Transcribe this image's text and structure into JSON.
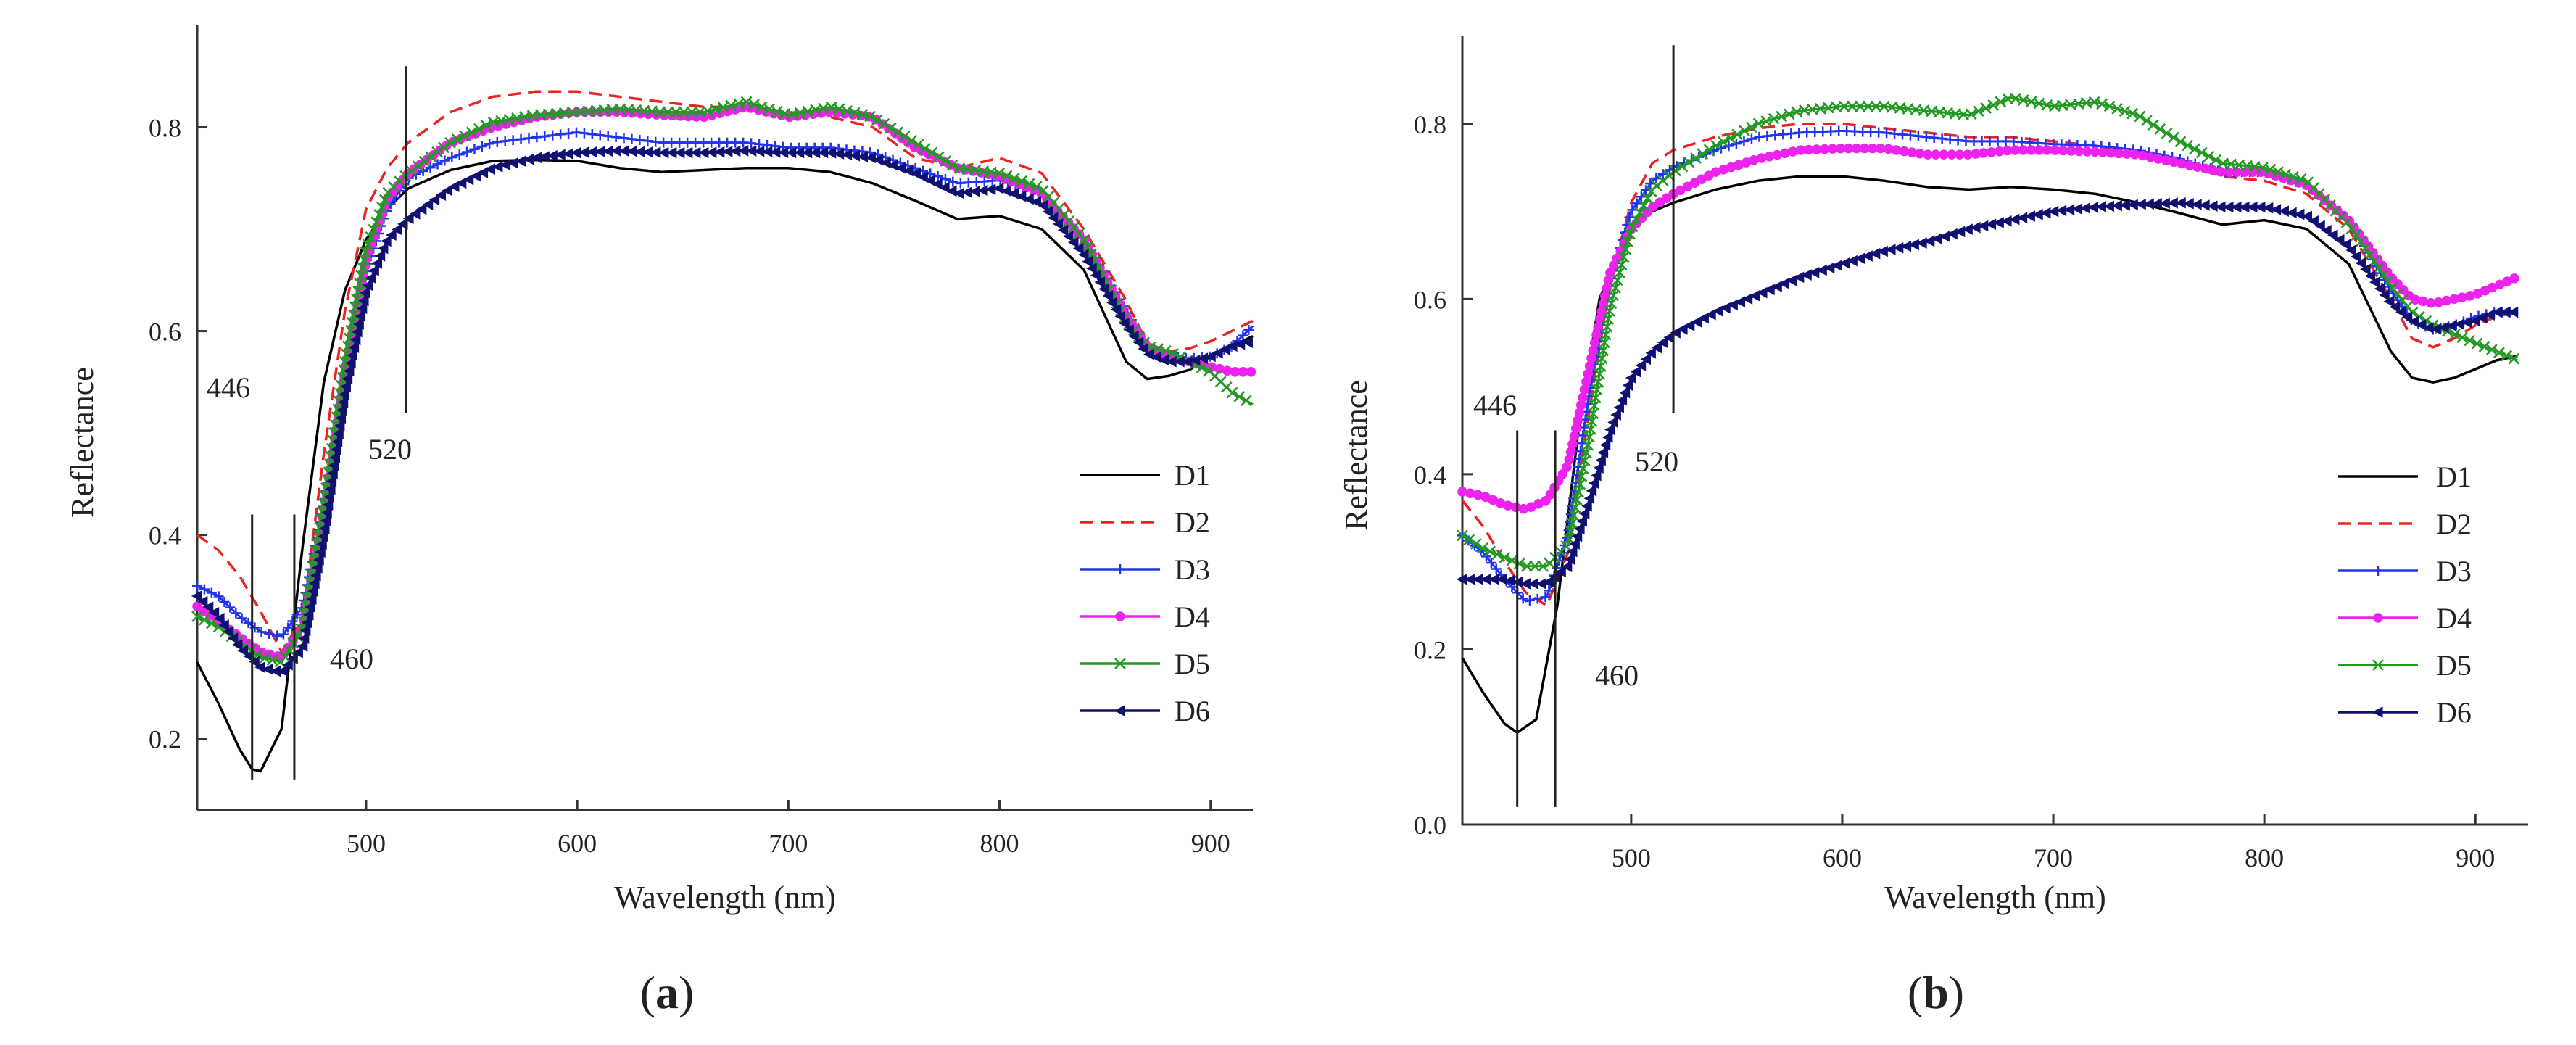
{
  "chart_data": [
    {
      "type": "line",
      "panel": "a",
      "xlabel": "Wavelength (nm)",
      "ylabel": "Reflectance",
      "xlim": [
        420,
        920
      ],
      "ylim": [
        0.13,
        0.9
      ],
      "xticks": [
        500,
        600,
        700,
        800,
        900
      ],
      "yticks": [
        0.2,
        0.4,
        0.6,
        0.8
      ],
      "panel_label": {
        "open": "(",
        "letter": "a",
        "close": ")"
      },
      "grid": false,
      "legend_position": "bottom-right",
      "annotations": [
        {
          "text": "446",
          "x": 446,
          "y_from": 0.16,
          "y_to": 0.42
        },
        {
          "text": "460",
          "x": 466,
          "y_from": 0.16,
          "y_to": 0.42
        },
        {
          "text": "520",
          "x": 519,
          "y_from": 0.52,
          "y_to": 0.86
        }
      ],
      "series": [
        {
          "name": "D1",
          "color": "#000000",
          "dash": "solid",
          "marker": "none",
          "x": [
            420,
            430,
            440,
            446,
            450,
            460,
            470,
            480,
            490,
            500,
            510,
            520,
            540,
            560,
            580,
            600,
            620,
            640,
            660,
            680,
            700,
            720,
            740,
            760,
            780,
            800,
            820,
            840,
            860,
            870,
            880,
            890,
            900,
            910,
            920
          ],
          "y": [
            0.275,
            0.235,
            0.19,
            0.17,
            0.168,
            0.21,
            0.39,
            0.55,
            0.64,
            0.69,
            0.72,
            0.74,
            0.758,
            0.767,
            0.768,
            0.767,
            0.76,
            0.756,
            0.758,
            0.76,
            0.76,
            0.756,
            0.745,
            0.728,
            0.71,
            0.713,
            0.7,
            0.66,
            0.57,
            0.553,
            0.556,
            0.562,
            0.575,
            0.585,
            0.595
          ]
        },
        {
          "name": "D2",
          "color": "#ee2222",
          "dash": "dashed",
          "marker": "none",
          "x": [
            420,
            430,
            440,
            450,
            460,
            470,
            480,
            490,
            500,
            510,
            520,
            540,
            560,
            580,
            600,
            620,
            640,
            660,
            680,
            700,
            720,
            740,
            760,
            780,
            800,
            820,
            840,
            860,
            870,
            880,
            890,
            900,
            910,
            920
          ],
          "y": [
            0.4,
            0.385,
            0.36,
            0.325,
            0.285,
            0.32,
            0.48,
            0.62,
            0.72,
            0.76,
            0.785,
            0.815,
            0.83,
            0.835,
            0.835,
            0.83,
            0.825,
            0.82,
            0.82,
            0.815,
            0.81,
            0.8,
            0.77,
            0.76,
            0.77,
            0.755,
            0.7,
            0.63,
            0.588,
            0.58,
            0.583,
            0.59,
            0.6,
            0.61
          ]
        },
        {
          "name": "D3",
          "color": "#2233ee",
          "dash": "solid",
          "marker": "plus",
          "x": [
            420,
            430,
            440,
            450,
            460,
            470,
            480,
            490,
            500,
            510,
            520,
            540,
            560,
            580,
            600,
            620,
            640,
            660,
            680,
            700,
            720,
            740,
            760,
            780,
            800,
            820,
            840,
            860,
            870,
            880,
            890,
            900,
            910,
            920
          ],
          "y": [
            0.35,
            0.34,
            0.32,
            0.305,
            0.3,
            0.33,
            0.43,
            0.55,
            0.66,
            0.72,
            0.75,
            0.77,
            0.785,
            0.79,
            0.795,
            0.79,
            0.785,
            0.785,
            0.785,
            0.78,
            0.78,
            0.775,
            0.76,
            0.745,
            0.748,
            0.735,
            0.69,
            0.62,
            0.585,
            0.575,
            0.573,
            0.575,
            0.585,
            0.605
          ]
        },
        {
          "name": "D4",
          "color": "#ee22ee",
          "dash": "solid",
          "marker": "circle",
          "x": [
            420,
            430,
            440,
            450,
            460,
            470,
            480,
            490,
            500,
            510,
            520,
            540,
            560,
            580,
            600,
            620,
            640,
            660,
            680,
            700,
            720,
            740,
            760,
            780,
            800,
            820,
            840,
            860,
            870,
            880,
            890,
            900,
            910,
            920
          ],
          "y": [
            0.33,
            0.315,
            0.3,
            0.285,
            0.28,
            0.31,
            0.42,
            0.56,
            0.67,
            0.73,
            0.755,
            0.785,
            0.8,
            0.81,
            0.815,
            0.815,
            0.812,
            0.81,
            0.82,
            0.81,
            0.815,
            0.81,
            0.78,
            0.76,
            0.752,
            0.735,
            0.69,
            0.615,
            0.585,
            0.575,
            0.57,
            0.565,
            0.56,
            0.56
          ]
        },
        {
          "name": "D5",
          "color": "#229922",
          "dash": "solid",
          "marker": "x",
          "x": [
            420,
            430,
            440,
            450,
            460,
            470,
            480,
            490,
            500,
            510,
            520,
            540,
            560,
            580,
            600,
            620,
            640,
            660,
            680,
            700,
            720,
            740,
            760,
            780,
            800,
            820,
            840,
            860,
            870,
            880,
            890,
            900,
            910,
            920
          ],
          "y": [
            0.32,
            0.31,
            0.295,
            0.28,
            0.275,
            0.31,
            0.43,
            0.57,
            0.68,
            0.735,
            0.755,
            0.785,
            0.805,
            0.812,
            0.815,
            0.818,
            0.815,
            0.815,
            0.825,
            0.812,
            0.82,
            0.81,
            0.785,
            0.76,
            0.755,
            0.74,
            0.69,
            0.61,
            0.585,
            0.58,
            0.57,
            0.56,
            0.54,
            0.528
          ]
        },
        {
          "name": "D6",
          "color": "#101070",
          "dash": "solid",
          "marker": "triangle",
          "x": [
            420,
            430,
            440,
            450,
            460,
            470,
            480,
            490,
            500,
            510,
            520,
            540,
            560,
            580,
            600,
            620,
            640,
            660,
            680,
            700,
            720,
            740,
            760,
            780,
            800,
            820,
            840,
            860,
            870,
            880,
            890,
            900,
            910,
            920
          ],
          "y": [
            0.34,
            0.32,
            0.29,
            0.27,
            0.265,
            0.29,
            0.4,
            0.54,
            0.64,
            0.69,
            0.71,
            0.74,
            0.76,
            0.77,
            0.775,
            0.777,
            0.775,
            0.775,
            0.777,
            0.775,
            0.775,
            0.77,
            0.755,
            0.735,
            0.74,
            0.725,
            0.675,
            0.605,
            0.578,
            0.57,
            0.57,
            0.575,
            0.585,
            0.59
          ]
        }
      ]
    },
    {
      "type": "line",
      "panel": "b",
      "xlabel": "Wavelength (nm)",
      "ylabel": "Reflectance",
      "xlim": [
        420,
        925
      ],
      "ylim": [
        0.0,
        0.9
      ],
      "xticks": [
        500,
        600,
        700,
        800,
        900
      ],
      "yticks": [
        0.0,
        0.2,
        0.4,
        0.6,
        0.8
      ],
      "panel_label": {
        "open": "(",
        "letter": "b",
        "close": ")"
      },
      "grid": false,
      "legend_position": "bottom-right",
      "annotations": [
        {
          "text": "446",
          "x": 446,
          "y_from": 0.02,
          "y_to": 0.45
        },
        {
          "text": "460",
          "x": 464,
          "y_from": 0.02,
          "y_to": 0.45
        },
        {
          "text": "520",
          "x": 520,
          "y_from": 0.47,
          "y_to": 0.89
        }
      ],
      "series": [
        {
          "name": "D1",
          "color": "#000000",
          "dash": "solid",
          "marker": "none",
          "x": [
            420,
            430,
            440,
            446,
            455,
            465,
            475,
            485,
            495,
            505,
            520,
            540,
            560,
            580,
            600,
            620,
            640,
            660,
            680,
            700,
            720,
            740,
            760,
            780,
            800,
            820,
            840,
            860,
            870,
            880,
            890,
            900,
            910,
            920
          ],
          "y": [
            0.19,
            0.15,
            0.115,
            0.105,
            0.12,
            0.25,
            0.45,
            0.6,
            0.66,
            0.695,
            0.71,
            0.725,
            0.735,
            0.74,
            0.74,
            0.735,
            0.728,
            0.725,
            0.728,
            0.725,
            0.72,
            0.71,
            0.698,
            0.685,
            0.69,
            0.68,
            0.64,
            0.54,
            0.51,
            0.505,
            0.51,
            0.52,
            0.53,
            0.535
          ]
        },
        {
          "name": "D2",
          "color": "#ee2222",
          "dash": "dashed",
          "marker": "none",
          "x": [
            420,
            430,
            440,
            450,
            460,
            470,
            480,
            490,
            500,
            510,
            520,
            540,
            560,
            580,
            600,
            620,
            640,
            660,
            680,
            700,
            720,
            740,
            760,
            780,
            800,
            820,
            840,
            860,
            870,
            880,
            890,
            900,
            910,
            920
          ],
          "y": [
            0.37,
            0.34,
            0.3,
            0.265,
            0.25,
            0.31,
            0.47,
            0.62,
            0.71,
            0.755,
            0.77,
            0.785,
            0.795,
            0.8,
            0.8,
            0.795,
            0.79,
            0.785,
            0.785,
            0.78,
            0.775,
            0.765,
            0.755,
            0.74,
            0.735,
            0.72,
            0.68,
            0.6,
            0.555,
            0.545,
            0.555,
            0.57,
            0.58,
            0.585
          ]
        },
        {
          "name": "D3",
          "color": "#2233ee",
          "dash": "solid",
          "marker": "plus",
          "x": [
            420,
            430,
            440,
            450,
            460,
            470,
            480,
            490,
            500,
            510,
            520,
            540,
            560,
            580,
            600,
            620,
            640,
            660,
            680,
            700,
            720,
            740,
            760,
            780,
            800,
            820,
            840,
            860,
            870,
            880,
            890,
            900,
            910,
            920
          ],
          "y": [
            0.33,
            0.31,
            0.28,
            0.255,
            0.26,
            0.33,
            0.49,
            0.62,
            0.7,
            0.735,
            0.75,
            0.77,
            0.785,
            0.79,
            0.792,
            0.79,
            0.785,
            0.78,
            0.78,
            0.777,
            0.775,
            0.77,
            0.76,
            0.745,
            0.745,
            0.73,
            0.69,
            0.61,
            0.575,
            0.565,
            0.57,
            0.58,
            0.585,
            0.585
          ]
        },
        {
          "name": "D4",
          "color": "#ee22ee",
          "dash": "solid",
          "marker": "circle",
          "x": [
            420,
            430,
            440,
            450,
            460,
            470,
            480,
            490,
            500,
            510,
            520,
            540,
            560,
            580,
            600,
            620,
            640,
            660,
            680,
            700,
            720,
            740,
            760,
            780,
            800,
            820,
            840,
            860,
            870,
            880,
            890,
            900,
            910,
            920
          ],
          "y": [
            0.38,
            0.375,
            0.365,
            0.36,
            0.37,
            0.41,
            0.52,
            0.63,
            0.68,
            0.705,
            0.72,
            0.745,
            0.76,
            0.77,
            0.772,
            0.772,
            0.765,
            0.765,
            0.77,
            0.77,
            0.768,
            0.765,
            0.755,
            0.745,
            0.745,
            0.73,
            0.69,
            0.625,
            0.6,
            0.595,
            0.6,
            0.605,
            0.615,
            0.625
          ]
        },
        {
          "name": "D5",
          "color": "#229922",
          "dash": "solid",
          "marker": "x",
          "x": [
            420,
            430,
            440,
            450,
            460,
            470,
            480,
            490,
            500,
            510,
            520,
            540,
            560,
            580,
            600,
            620,
            640,
            660,
            680,
            700,
            720,
            740,
            760,
            780,
            800,
            820,
            840,
            860,
            870,
            880,
            890,
            900,
            910,
            920
          ],
          "y": [
            0.33,
            0.315,
            0.305,
            0.295,
            0.295,
            0.32,
            0.44,
            0.59,
            0.68,
            0.725,
            0.745,
            0.775,
            0.8,
            0.815,
            0.82,
            0.82,
            0.815,
            0.81,
            0.83,
            0.82,
            0.825,
            0.81,
            0.78,
            0.755,
            0.75,
            0.735,
            0.685,
            0.615,
            0.585,
            0.57,
            0.56,
            0.55,
            0.54,
            0.53
          ]
        },
        {
          "name": "D6",
          "color": "#101070",
          "dash": "solid",
          "marker": "triangle",
          "x": [
            420,
            430,
            440,
            450,
            460,
            470,
            480,
            490,
            500,
            510,
            520,
            540,
            560,
            580,
            600,
            620,
            640,
            660,
            680,
            700,
            720,
            740,
            760,
            780,
            800,
            820,
            840,
            860,
            870,
            880,
            890,
            900,
            910,
            920
          ],
          "y": [
            0.28,
            0.28,
            0.28,
            0.275,
            0.275,
            0.295,
            0.37,
            0.45,
            0.51,
            0.54,
            0.56,
            0.585,
            0.605,
            0.625,
            0.64,
            0.655,
            0.665,
            0.68,
            0.69,
            0.7,
            0.705,
            0.708,
            0.71,
            0.705,
            0.705,
            0.695,
            0.66,
            0.595,
            0.575,
            0.565,
            0.57,
            0.575,
            0.585,
            0.585
          ]
        }
      ]
    }
  ]
}
